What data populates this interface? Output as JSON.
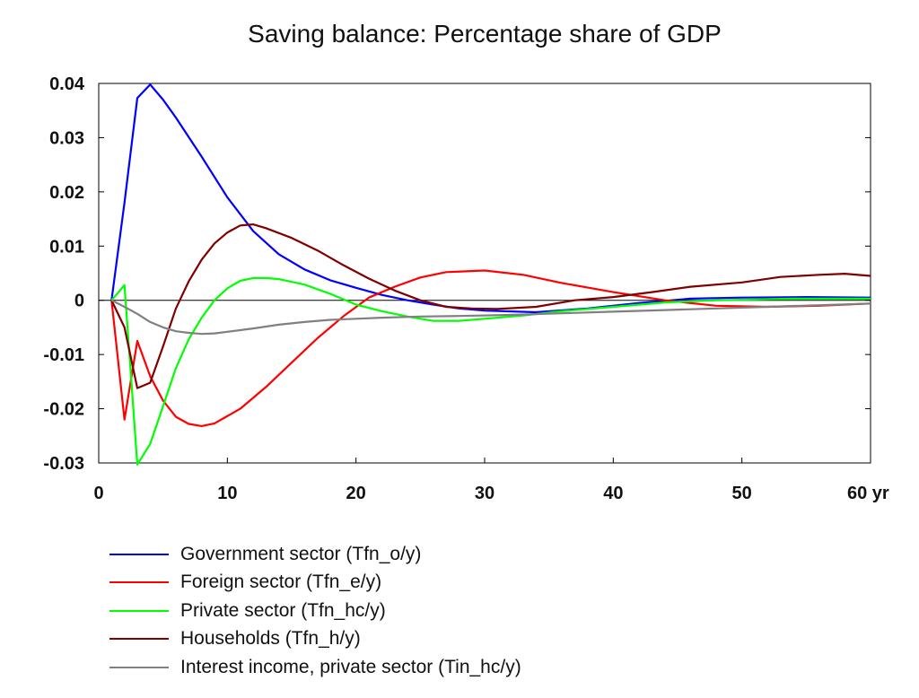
{
  "chart_data": {
    "type": "line",
    "title": "Saving balance: Percentage share of GDP",
    "xlabel": "",
    "x_unit_label": "yr",
    "ylabel": "",
    "xlim": [
      0,
      60
    ],
    "ylim": [
      -0.03,
      0.04
    ],
    "x_ticks": [
      0,
      10,
      20,
      30,
      40,
      50,
      60
    ],
    "x_tick_labels": [
      "0",
      "10",
      "20",
      "30",
      "40",
      "50",
      "60 yr"
    ],
    "y_ticks": [
      0.04,
      0.03,
      0.02,
      0.01,
      0,
      -0.01,
      -0.02,
      -0.03
    ],
    "y_tick_labels": [
      "0.04",
      "0.03",
      "0.02",
      "0.01",
      "0",
      "-0.01",
      "-0.02",
      "-0.03"
    ],
    "zero_line": true,
    "grid": false,
    "legend_position": "bottom",
    "series": [
      {
        "name": "Government sector (Tfn_o/y)",
        "color": "#0000ff",
        "points": [
          [
            1,
            0
          ],
          [
            2,
            0.018
          ],
          [
            3,
            0.0373
          ],
          [
            4,
            0.0398
          ],
          [
            5,
            0.037
          ],
          [
            6,
            0.0337
          ],
          [
            8,
            0.0265
          ],
          [
            10,
            0.019
          ],
          [
            12,
            0.0128
          ],
          [
            14,
            0.0085
          ],
          [
            16,
            0.0057
          ],
          [
            18,
            0.0037
          ],
          [
            20,
            0.0023
          ],
          [
            22,
            0.001
          ],
          [
            24,
            0.0
          ],
          [
            26,
            -0.0008
          ],
          [
            28,
            -0.0015
          ],
          [
            30,
            -0.0019
          ],
          [
            34,
            -0.0022
          ],
          [
            38,
            -0.0015
          ],
          [
            42,
            -0.0005
          ],
          [
            46,
            0.0003
          ],
          [
            50,
            0.0005
          ],
          [
            55,
            0.0006
          ],
          [
            60,
            0.0005
          ]
        ]
      },
      {
        "name": "Foreign sector (Tfn_e/y)",
        "color": "#ff0000",
        "points": [
          [
            1,
            0
          ],
          [
            2,
            -0.022
          ],
          [
            3,
            -0.0075
          ],
          [
            4,
            -0.014
          ],
          [
            5,
            -0.0185
          ],
          [
            6,
            -0.0215
          ],
          [
            7,
            -0.0228
          ],
          [
            8,
            -0.0232
          ],
          [
            9,
            -0.0227
          ],
          [
            11,
            -0.02
          ],
          [
            13,
            -0.016
          ],
          [
            15,
            -0.0115
          ],
          [
            17,
            -0.007
          ],
          [
            19,
            -0.003
          ],
          [
            21,
            0.0005
          ],
          [
            23,
            0.0025
          ],
          [
            25,
            0.0042
          ],
          [
            27,
            0.0052
          ],
          [
            30,
            0.0055
          ],
          [
            33,
            0.0047
          ],
          [
            36,
            0.0032
          ],
          [
            40,
            0.0015
          ],
          [
            44,
            0.0
          ],
          [
            48,
            -0.001
          ],
          [
            52,
            -0.0012
          ],
          [
            56,
            -0.001
          ],
          [
            60,
            -0.0006
          ]
        ]
      },
      {
        "name": "Private sector (Tfn_hc/y)",
        "color": "#00ff00",
        "points": [
          [
            1,
            0
          ],
          [
            2,
            0.0028
          ],
          [
            3,
            -0.0303
          ],
          [
            4,
            -0.0265
          ],
          [
            5,
            -0.0195
          ],
          [
            6,
            -0.0125
          ],
          [
            7,
            -0.0072
          ],
          [
            8,
            -0.0032
          ],
          [
            9,
            0.0
          ],
          [
            10,
            0.0022
          ],
          [
            11,
            0.0036
          ],
          [
            12,
            0.0041
          ],
          [
            13,
            0.0041
          ],
          [
            14,
            0.0039
          ],
          [
            16,
            0.0029
          ],
          [
            18,
            0.0012
          ],
          [
            20,
            -0.0008
          ],
          [
            22,
            -0.002
          ],
          [
            24,
            -0.003
          ],
          [
            26,
            -0.0038
          ],
          [
            28,
            -0.0038
          ],
          [
            30,
            -0.0034
          ],
          [
            33,
            -0.0028
          ],
          [
            36,
            -0.002
          ],
          [
            40,
            -0.0012
          ],
          [
            44,
            -0.0004
          ],
          [
            48,
            0.0
          ],
          [
            54,
            0.0003
          ],
          [
            60,
            0.0003
          ]
        ]
      },
      {
        "name": "Households (Tfn_h/y)",
        "color": "#800000",
        "points": [
          [
            1,
            0
          ],
          [
            2,
            -0.005
          ],
          [
            3,
            -0.0162
          ],
          [
            4,
            -0.0152
          ],
          [
            5,
            -0.0085
          ],
          [
            6,
            -0.0015
          ],
          [
            7,
            0.0035
          ],
          [
            8,
            0.0075
          ],
          [
            9,
            0.0105
          ],
          [
            10,
            0.0125
          ],
          [
            11,
            0.0138
          ],
          [
            12,
            0.014
          ],
          [
            13,
            0.0133
          ],
          [
            15,
            0.0115
          ],
          [
            17,
            0.0092
          ],
          [
            19,
            0.0065
          ],
          [
            21,
            0.004
          ],
          [
            23,
            0.0018
          ],
          [
            25,
            0.0
          ],
          [
            27,
            -0.0012
          ],
          [
            29,
            -0.0015
          ],
          [
            31,
            -0.0016
          ],
          [
            34,
            -0.0012
          ],
          [
            37,
            0.0
          ],
          [
            40,
            0.0006
          ],
          [
            43,
            0.0015
          ],
          [
            46,
            0.0025
          ],
          [
            50,
            0.0033
          ],
          [
            53,
            0.0043
          ],
          [
            56,
            0.0047
          ],
          [
            58,
            0.0049
          ],
          [
            60,
            0.0045
          ]
        ]
      },
      {
        "name": "Interest income, private sector (Tin_hc/y)",
        "color": "#808080",
        "points": [
          [
            1,
            0
          ],
          [
            2,
            -0.0012
          ],
          [
            3,
            -0.0025
          ],
          [
            4,
            -0.004
          ],
          [
            5,
            -0.005
          ],
          [
            6,
            -0.0057
          ],
          [
            7,
            -0.006
          ],
          [
            8,
            -0.0062
          ],
          [
            9,
            -0.0061
          ],
          [
            10,
            -0.0058
          ],
          [
            12,
            -0.0052
          ],
          [
            14,
            -0.0045
          ],
          [
            16,
            -0.004
          ],
          [
            18,
            -0.0036
          ],
          [
            20,
            -0.0034
          ],
          [
            22,
            -0.0032
          ],
          [
            25,
            -0.003
          ],
          [
            28,
            -0.0029
          ],
          [
            32,
            -0.0027
          ],
          [
            36,
            -0.0024
          ],
          [
            40,
            -0.0021
          ],
          [
            44,
            -0.0018
          ],
          [
            48,
            -0.0015
          ],
          [
            52,
            -0.0012
          ],
          [
            56,
            -0.0009
          ],
          [
            60,
            -0.0006
          ]
        ]
      }
    ]
  }
}
